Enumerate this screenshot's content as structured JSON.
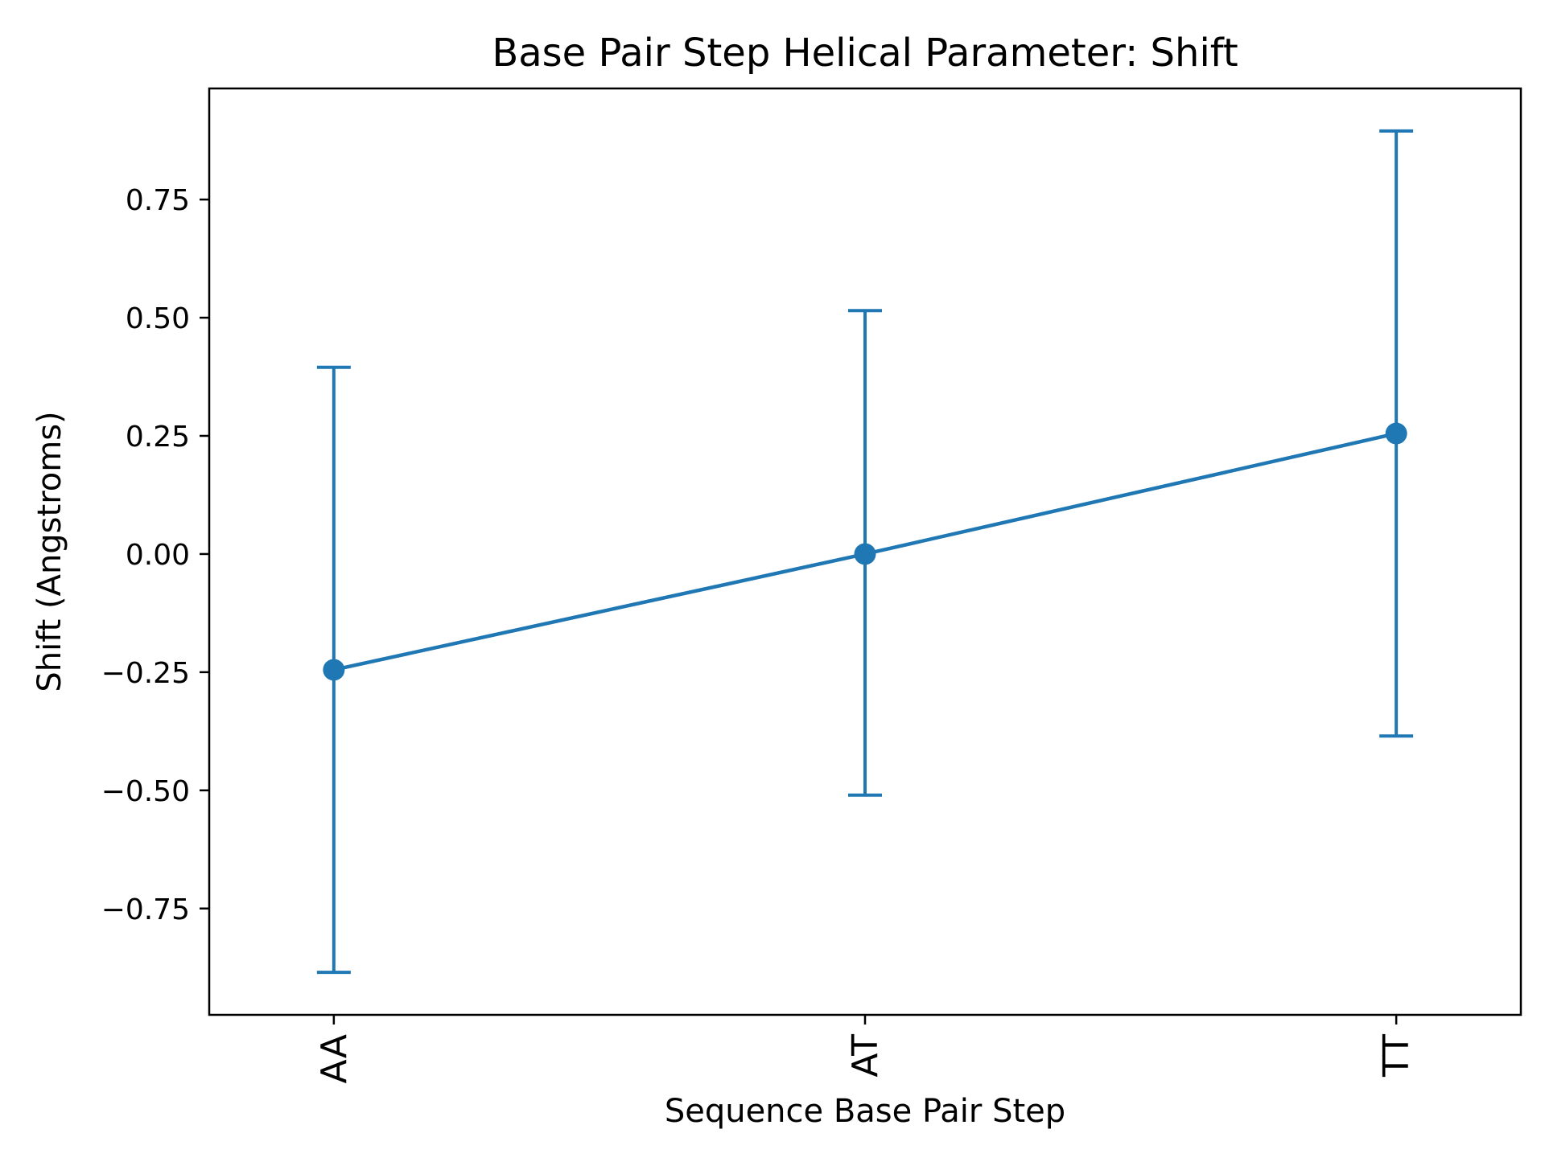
{
  "chart_data": {
    "type": "line",
    "title": "Base Pair Step Helical Parameter: Shift",
    "xlabel": "Sequence Base Pair Step",
    "ylabel": "Shift (Angstroms)",
    "categories": [
      "AA",
      "AT",
      "TT"
    ],
    "series": [
      {
        "values": [
          -0.245,
          0.0,
          0.255
        ],
        "error_lower": [
          -0.885,
          -0.51,
          -0.385
        ],
        "error_upper": [
          0.395,
          0.515,
          0.895
        ],
        "color": "#1f77b4",
        "marker": "circle"
      }
    ],
    "ylim": [
      -0.975,
      0.985
    ],
    "yticks": [
      -0.75,
      -0.5,
      -0.25,
      0.0,
      0.25,
      0.5,
      0.75
    ],
    "ytick_labels": [
      "−0.75",
      "−0.50",
      "−0.25",
      "0.00",
      "0.25",
      "0.50",
      "0.75"
    ],
    "grid": false,
    "x_tick_rotation": "vertical"
  }
}
